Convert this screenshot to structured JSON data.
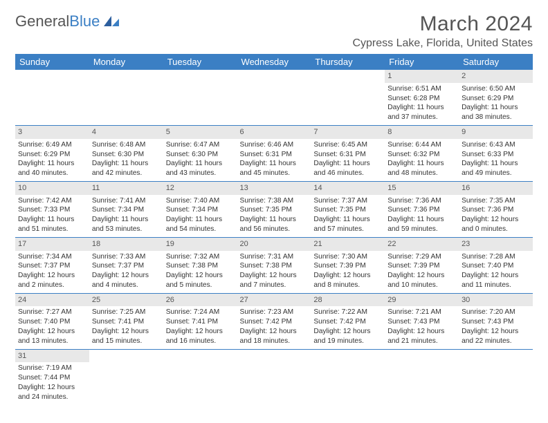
{
  "logo": {
    "word1": "General",
    "word2": "Blue"
  },
  "title": "March 2024",
  "location": "Cypress Lake, Florida, United States",
  "weekdays": [
    "Sunday",
    "Monday",
    "Tuesday",
    "Wednesday",
    "Thursday",
    "Friday",
    "Saturday"
  ],
  "colors": {
    "accent": "#3b7fc4",
    "dayhead": "#e8e8e8",
    "text": "#333333",
    "bg": "#ffffff"
  },
  "fonts": {
    "title_size": 30,
    "location_size": 16,
    "th_size": 13,
    "cell_size": 10.2
  },
  "firstDayIndex": 5,
  "daysInMonth": 31,
  "days": {
    "1": {
      "sunrise": "6:51 AM",
      "sunset": "6:28 PM",
      "daylight": "11 hours and 37 minutes."
    },
    "2": {
      "sunrise": "6:50 AM",
      "sunset": "6:29 PM",
      "daylight": "11 hours and 38 minutes."
    },
    "3": {
      "sunrise": "6:49 AM",
      "sunset": "6:29 PM",
      "daylight": "11 hours and 40 minutes."
    },
    "4": {
      "sunrise": "6:48 AM",
      "sunset": "6:30 PM",
      "daylight": "11 hours and 42 minutes."
    },
    "5": {
      "sunrise": "6:47 AM",
      "sunset": "6:30 PM",
      "daylight": "11 hours and 43 minutes."
    },
    "6": {
      "sunrise": "6:46 AM",
      "sunset": "6:31 PM",
      "daylight": "11 hours and 45 minutes."
    },
    "7": {
      "sunrise": "6:45 AM",
      "sunset": "6:31 PM",
      "daylight": "11 hours and 46 minutes."
    },
    "8": {
      "sunrise": "6:44 AM",
      "sunset": "6:32 PM",
      "daylight": "11 hours and 48 minutes."
    },
    "9": {
      "sunrise": "6:43 AM",
      "sunset": "6:33 PM",
      "daylight": "11 hours and 49 minutes."
    },
    "10": {
      "sunrise": "7:42 AM",
      "sunset": "7:33 PM",
      "daylight": "11 hours and 51 minutes."
    },
    "11": {
      "sunrise": "7:41 AM",
      "sunset": "7:34 PM",
      "daylight": "11 hours and 53 minutes."
    },
    "12": {
      "sunrise": "7:40 AM",
      "sunset": "7:34 PM",
      "daylight": "11 hours and 54 minutes."
    },
    "13": {
      "sunrise": "7:38 AM",
      "sunset": "7:35 PM",
      "daylight": "11 hours and 56 minutes."
    },
    "14": {
      "sunrise": "7:37 AM",
      "sunset": "7:35 PM",
      "daylight": "11 hours and 57 minutes."
    },
    "15": {
      "sunrise": "7:36 AM",
      "sunset": "7:36 PM",
      "daylight": "11 hours and 59 minutes."
    },
    "16": {
      "sunrise": "7:35 AM",
      "sunset": "7:36 PM",
      "daylight": "12 hours and 0 minutes."
    },
    "17": {
      "sunrise": "7:34 AM",
      "sunset": "7:37 PM",
      "daylight": "12 hours and 2 minutes."
    },
    "18": {
      "sunrise": "7:33 AM",
      "sunset": "7:37 PM",
      "daylight": "12 hours and 4 minutes."
    },
    "19": {
      "sunrise": "7:32 AM",
      "sunset": "7:38 PM",
      "daylight": "12 hours and 5 minutes."
    },
    "20": {
      "sunrise": "7:31 AM",
      "sunset": "7:38 PM",
      "daylight": "12 hours and 7 minutes."
    },
    "21": {
      "sunrise": "7:30 AM",
      "sunset": "7:39 PM",
      "daylight": "12 hours and 8 minutes."
    },
    "22": {
      "sunrise": "7:29 AM",
      "sunset": "7:39 PM",
      "daylight": "12 hours and 10 minutes."
    },
    "23": {
      "sunrise": "7:28 AM",
      "sunset": "7:40 PM",
      "daylight": "12 hours and 11 minutes."
    },
    "24": {
      "sunrise": "7:27 AM",
      "sunset": "7:40 PM",
      "daylight": "12 hours and 13 minutes."
    },
    "25": {
      "sunrise": "7:25 AM",
      "sunset": "7:41 PM",
      "daylight": "12 hours and 15 minutes."
    },
    "26": {
      "sunrise": "7:24 AM",
      "sunset": "7:41 PM",
      "daylight": "12 hours and 16 minutes."
    },
    "27": {
      "sunrise": "7:23 AM",
      "sunset": "7:42 PM",
      "daylight": "12 hours and 18 minutes."
    },
    "28": {
      "sunrise": "7:22 AM",
      "sunset": "7:42 PM",
      "daylight": "12 hours and 19 minutes."
    },
    "29": {
      "sunrise": "7:21 AM",
      "sunset": "7:43 PM",
      "daylight": "12 hours and 21 minutes."
    },
    "30": {
      "sunrise": "7:20 AM",
      "sunset": "7:43 PM",
      "daylight": "12 hours and 22 minutes."
    },
    "31": {
      "sunrise": "7:19 AM",
      "sunset": "7:44 PM",
      "daylight": "12 hours and 24 minutes."
    }
  },
  "labels": {
    "sunrise": "Sunrise: ",
    "sunset": "Sunset: ",
    "daylight": "Daylight: "
  }
}
